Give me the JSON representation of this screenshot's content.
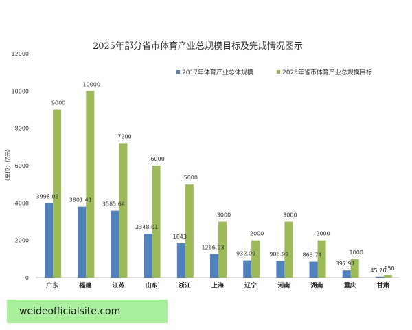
{
  "chart_data": {
    "type": "bar",
    "title": "2025年部分省市体育产业总规模目标及完成情况图示",
    "ylabel": "（单位：亿元）",
    "xlabel": "",
    "ylim": [
      0,
      12000
    ],
    "yticks": [
      0,
      2000,
      4000,
      6000,
      8000,
      10000,
      12000
    ],
    "grid": false,
    "legend_position": "top-right",
    "categories": [
      "广东",
      "福建",
      "江苏",
      "山东",
      "浙江",
      "上海",
      "辽宁",
      "河南",
      "湖南",
      "重庆",
      "甘肃"
    ],
    "series": [
      {
        "name": "2017年体育产业总体规模",
        "color": "#4f81bd",
        "values": [
          3998.03,
          3801.41,
          3585.64,
          2348.01,
          1843,
          1266.93,
          932.09,
          906.99,
          863.74,
          397.91,
          45.76
        ],
        "labels": [
          "3998.03",
          "3801.41",
          "3585.64",
          "2348.01",
          "1843",
          "1266.93",
          "932.09",
          "906.99",
          "863.74",
          "397.91",
          "45.76"
        ]
      },
      {
        "name": "2025年省市体育产业总规模目标",
        "color": "#9bbb59",
        "values": [
          9000,
          10000,
          7200,
          6000,
          5000,
          3000,
          2000,
          3000,
          2000,
          1000,
          150
        ],
        "labels": [
          "9000",
          "10000",
          "7200",
          "6000",
          "5000",
          "3000",
          "2000",
          "3000",
          "2000",
          "1000",
          "150"
        ]
      }
    ]
  },
  "watermark": {
    "text": "weideofficialsite.com"
  }
}
